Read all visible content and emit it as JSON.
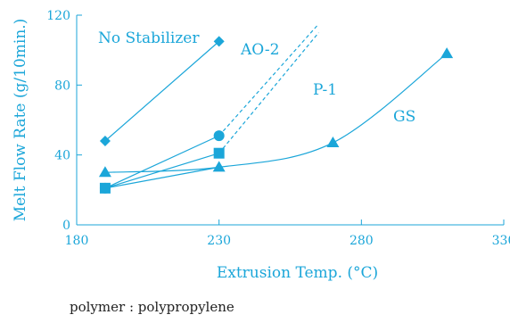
{
  "colors": {
    "accent": "#1ba6d9",
    "text": "#222222"
  },
  "note": "polymer : polypropylene",
  "chart_data": {
    "type": "line",
    "xlabel": "Extrusion Temp. (°C)",
    "ylabel": "Melt Flow Rate (g/10min.)",
    "xlim": [
      180,
      330
    ],
    "ylim": [
      0,
      120
    ],
    "xticks": [
      "180",
      "230",
      "280",
      "330"
    ],
    "yticks": [
      "0",
      "40",
      "80",
      "120"
    ],
    "grid": false,
    "series": [
      {
        "name": "No Stabilizer",
        "marker": "diamond",
        "smooth": false,
        "x": [
          190,
          230
        ],
        "y": [
          48,
          105
        ]
      },
      {
        "name": "AO-2",
        "marker": "circle",
        "smooth": false,
        "x": [
          190,
          230
        ],
        "y": [
          21,
          51
        ],
        "extension_dashed": [
          [
            230,
            51
          ],
          [
            265,
            115
          ]
        ]
      },
      {
        "name": "P-1",
        "marker": "square",
        "smooth": false,
        "x": [
          190,
          230
        ],
        "y": [
          21,
          41
        ],
        "extension_dashed": [
          [
            230,
            41
          ],
          [
            265,
            110
          ]
        ]
      },
      {
        "name": "GS",
        "marker": "triangle",
        "smooth": true,
        "x": [
          190,
          230,
          270,
          310
        ],
        "y": [
          30,
          33,
          47,
          98
        ],
        "extra_segment": [
          [
            190,
            21
          ],
          [
            230,
            33
          ]
        ]
      }
    ]
  }
}
